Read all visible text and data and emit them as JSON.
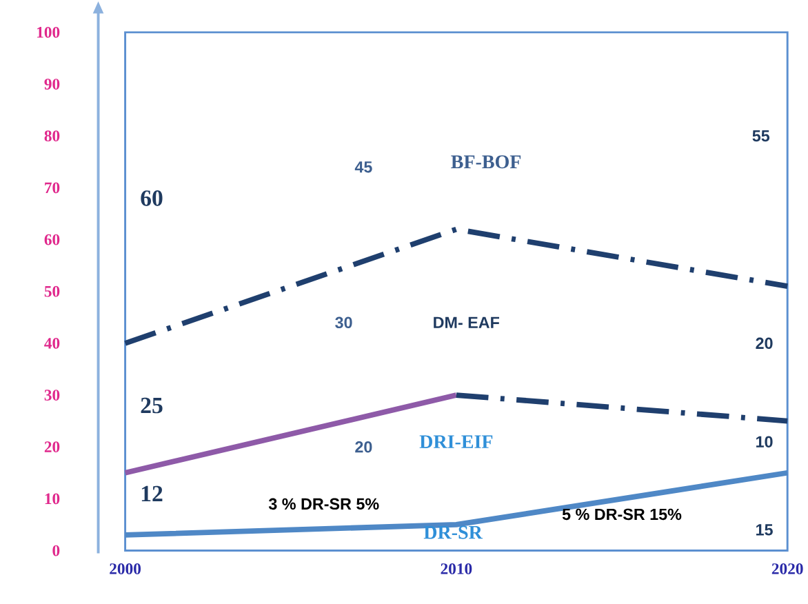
{
  "chart_data": {
    "type": "line",
    "categories": [
      "2000",
      "2010",
      "2020"
    ],
    "series": [
      {
        "color": "#4f88c6",
        "line_style": "solid",
        "values": [
          3,
          5,
          15
        ]
      },
      {
        "color": "#8e5aa8",
        "line_style": "solid",
        "values": [
          15,
          30,
          null
        ]
      },
      {
        "color": "#1f3f6e",
        "line_style": "dashdot",
        "values": [
          null,
          30,
          25
        ]
      },
      {
        "color": "#1f3f6e",
        "line_style": "dashdot",
        "values": [
          40,
          62,
          51
        ]
      }
    ],
    "ylim": [
      0,
      100
    ],
    "yticks": [
      0,
      10,
      20,
      30,
      40,
      50,
      60,
      70,
      80,
      90,
      100
    ],
    "marker": "none",
    "grid": false,
    "annotations": [
      "60",
      "25",
      "12",
      "45",
      "30",
      "20",
      "BF-BOF",
      "DM- EAF",
      "DRI-EIF",
      "DR-SR",
      "3 % DR-SR 5%",
      "5 % DR-SR 15%",
      "55",
      "20",
      "10",
      "15"
    ]
  }
}
